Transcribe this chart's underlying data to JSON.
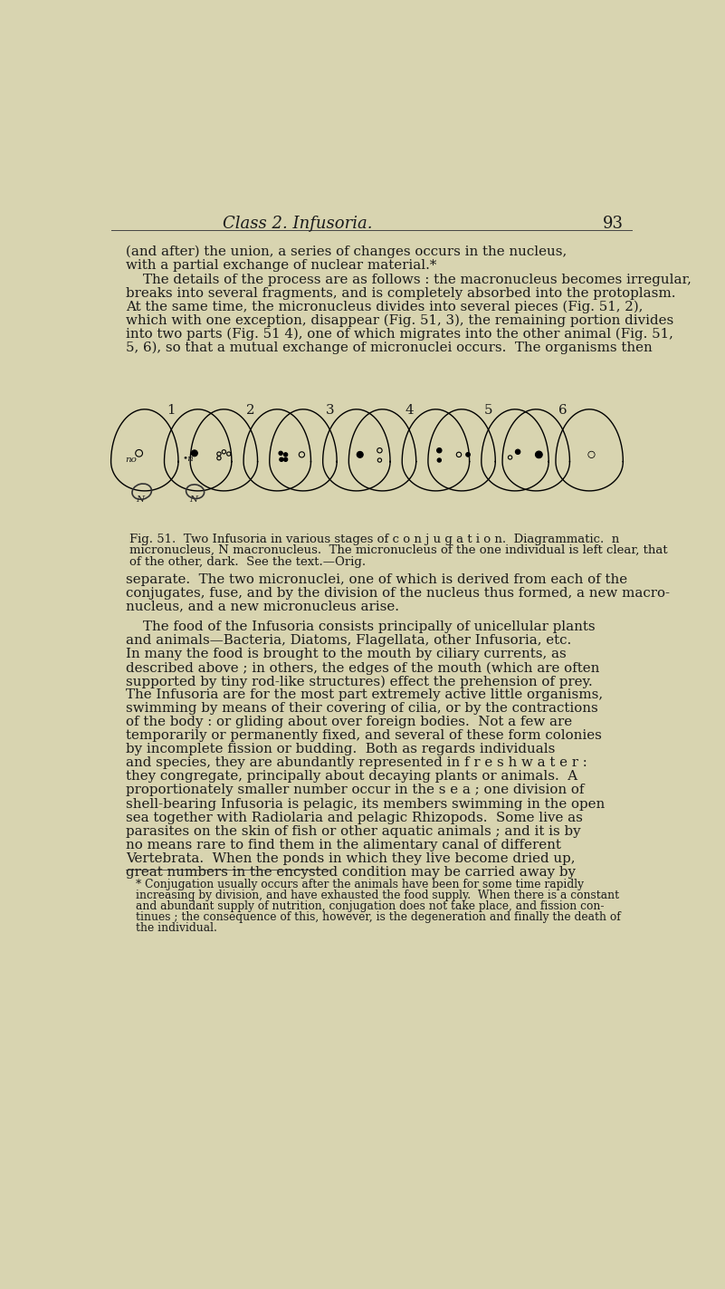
{
  "bg_color": "#d8d4b0",
  "page_header": "Class 2. Infusoria.",
  "page_number": "93",
  "header_fontsize": 13,
  "body_fontsize": 10.8,
  "small_fontsize": 9.5,
  "footnote_fontsize": 8.8,
  "text_color": "#1a1a1a",
  "fig_numbers": [
    "1",
    "2",
    "3",
    "4",
    "5",
    "6"
  ],
  "fig_caption_line1": "Fig. 51.  Two Infusoria in various stages of c o n j u g a t i o n.  Diagrammatic.  n",
  "fig_caption_line2": "micronucleus, N macronucleus.  The micronucleus of the one individual is left clear, that",
  "fig_caption_line3": "of the other, dark.  See the text.—Orig.",
  "para1_lines": [
    "(and after) the union, a series of changes occurs in the nucleus,",
    "with a partial exchange of nuclear material.*"
  ],
  "para2_lines": [
    "    The details of the process are as follows : the macronucleus becomes irregular,",
    "breaks into several fragments, and is completely absorbed into the protoplasm.",
    "At the same time, the micronucleus divides into several pieces (Fig. 51, 2),",
    "which with one exception, disappear (Fig. 51, 3), the remaining portion divides",
    "into two parts (Fig. 51 4), one of which migrates into the other animal (Fig. 51,",
    "5, 6), so that a mutual exchange of micronuclei occurs.  The organisms then"
  ],
  "after_para1_lines": [
    "separate.  The two micronuclei, one of which is derived from each of the",
    "conjugates, fuse, and by the division of the nucleus thus formed, a new macro-",
    "nucleus, and a new micronucleus arise."
  ],
  "after_para2_lines": [
    "    The food of the Infusoria consists principally of unicellular plants",
    "and animals—Bacteria, Diatoms, Flagellata, other Infusoria, etc.",
    "In many the food is brought to the mouth by ciliary currents, as",
    "described above ; in others, the edges of the mouth (which are often",
    "supported by tiny rod-like structures) effect the prehension of prey.",
    "The Infusoria are for the most part extremely active little organisms,",
    "swimming by means of their covering of cilia, or by the contractions",
    "of the body : or gliding about over foreign bodies.  Not a few are",
    "temporarily or permanently fixed, and several of these form colonies",
    "by incomplete fission or budding.  Both as regards individuals",
    "and species, they are abundantly represented in f r e s h w a t e r :",
    "they congregate, principally about decaying plants or animals.  A",
    "proportionately smaller number occur in the s e a ; one division of",
    "shell-bearing Infusoria is pelagic, its members swimming in the open",
    "sea together with Radiolaria and pelagic Rhizopods.  Some live as",
    "parasites on the skin of fish or other aquatic animals ; and it is by",
    "no means rare to find them in the alimentary canal of different",
    "Vertebrata.  When the ponds in which they live become dried up,",
    "great numbers in the encysted condition may be carried away by"
  ],
  "footnote_lines": [
    "* Conjugation usually occurs after the animals have been for some time rapidly",
    "increasing by division, and have exhausted the food supply.  When there is a constant",
    "and abundant supply of nutrition, conjugation does not take place, and fission con-",
    "tinues ; the consequence of this, however, is the degeneration and finally the death of",
    "the individual."
  ]
}
